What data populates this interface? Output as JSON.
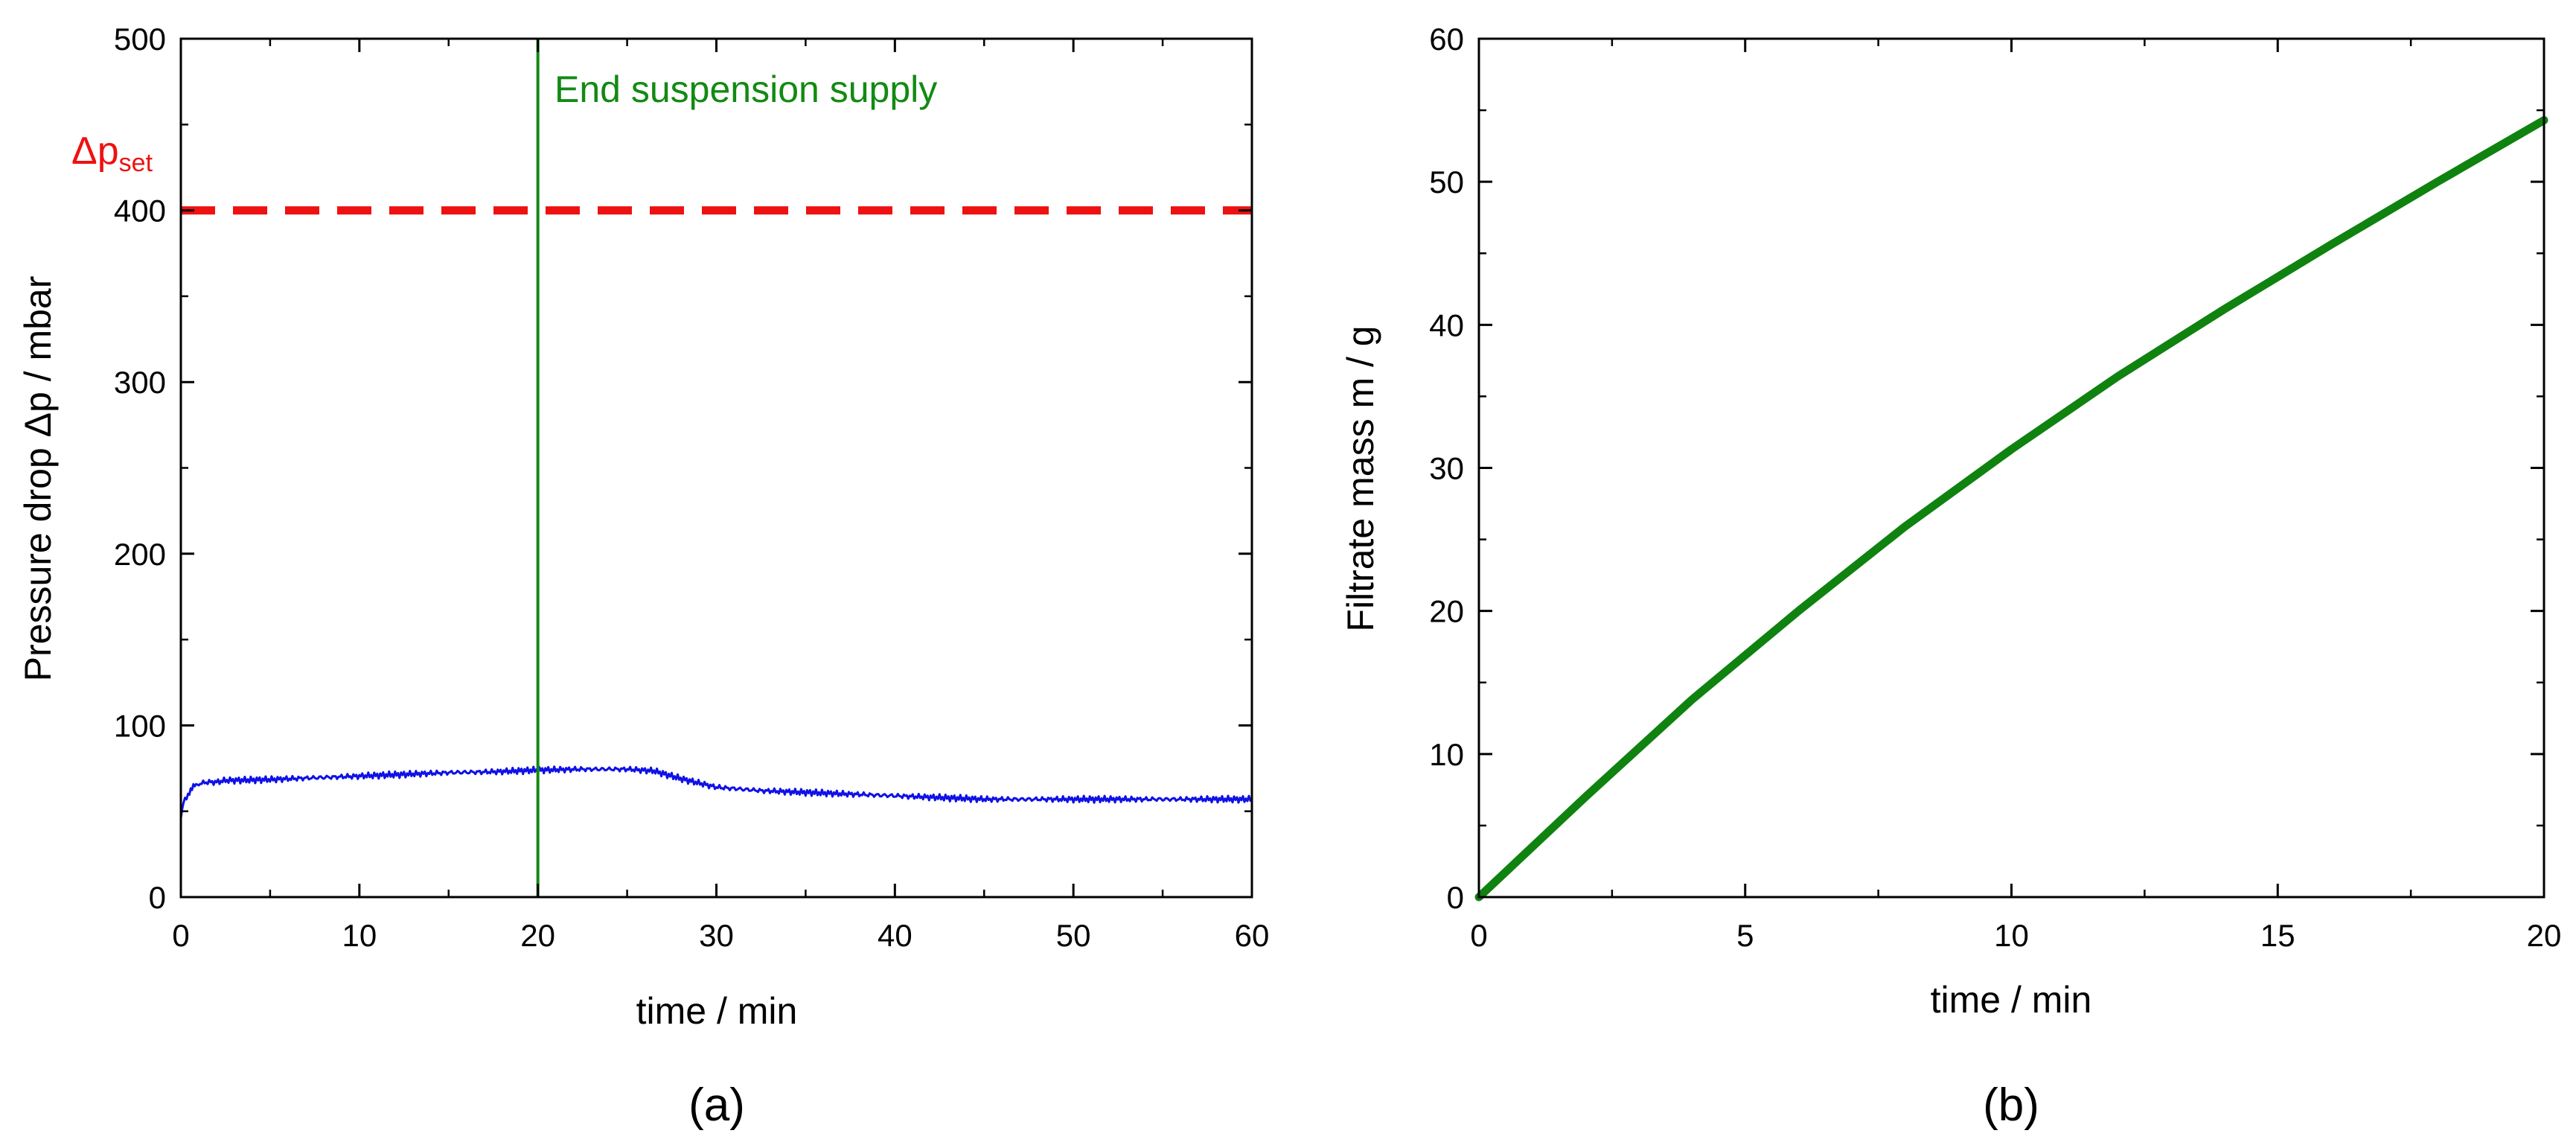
{
  "chart_data": [
    {
      "type": "line",
      "panel_label": "(a)",
      "xlabel": "time / min",
      "ylabel": "Pressure drop Δp  / mbar",
      "xlim": [
        0,
        60
      ],
      "ylim": [
        0,
        500
      ],
      "xticks": [
        0,
        10,
        20,
        30,
        40,
        50,
        60
      ],
      "yticks": [
        0,
        100,
        200,
        300,
        400,
        500
      ],
      "grid": false,
      "series": [
        {
          "color": "#1010e6",
          "x": [
            0,
            0.15,
            0.4,
            0.7,
            1.0,
            1.5,
            2.0,
            2.5,
            3,
            5,
            7.5,
            10,
            12.5,
            15,
            17.5,
            20,
            22.5,
            25,
            26.5,
            28,
            30,
            32.5,
            35,
            40,
            45,
            50,
            55,
            60
          ],
          "y": [
            46,
            55,
            60,
            64,
            66,
            67,
            67,
            68,
            68,
            68.5,
            69.5,
            70.5,
            71.5,
            72.5,
            73,
            74,
            74.5,
            74.5,
            73.5,
            69,
            64,
            62,
            61,
            59,
            57,
            57,
            57,
            57
          ]
        }
      ],
      "reference_lines": [
        {
          "orientation": "horizontal",
          "value": 400,
          "style": "dashed",
          "color": "#ee1111",
          "label_main": "Δp",
          "label_sub": "set"
        },
        {
          "orientation": "vertical",
          "value": 20,
          "style": "solid",
          "color": "#128a12",
          "label": "End suspension supply"
        }
      ]
    },
    {
      "type": "line",
      "panel_label": "(b)",
      "xlabel": "time / min",
      "ylabel": "Filtrate mass m / g",
      "xlim": [
        0,
        20
      ],
      "ylim": [
        0,
        60
      ],
      "xticks": [
        0,
        5,
        10,
        15,
        20
      ],
      "yticks": [
        0,
        10,
        20,
        30,
        40,
        50,
        60
      ],
      "grid": false,
      "series": [
        {
          "color": "#0f820f",
          "x": [
            0,
            2,
            4,
            6,
            8,
            10,
            12,
            14,
            16,
            18,
            20
          ],
          "y": [
            0,
            7,
            13.8,
            20,
            25.9,
            31.3,
            36.4,
            41.1,
            45.6,
            50.0,
            54.3
          ]
        }
      ]
    }
  ]
}
